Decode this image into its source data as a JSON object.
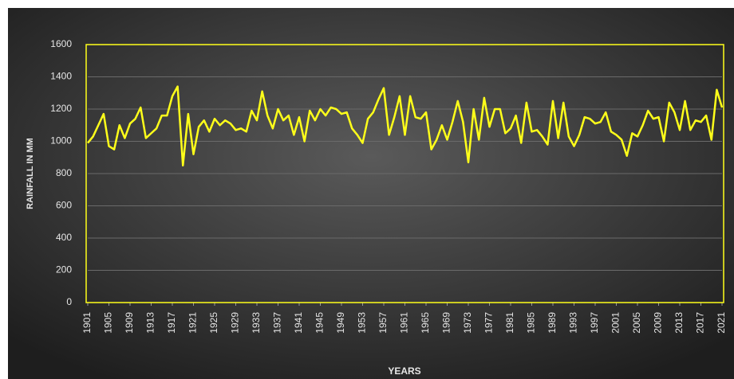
{
  "chart_data": {
    "type": "line",
    "x_label": "YEARS",
    "y_label": "RAINFALL IN MM",
    "x": [
      1901,
      1902,
      1903,
      1904,
      1905,
      1906,
      1907,
      1908,
      1909,
      1910,
      1911,
      1912,
      1913,
      1914,
      1915,
      1916,
      1917,
      1918,
      1919,
      1920,
      1921,
      1922,
      1923,
      1924,
      1925,
      1926,
      1927,
      1928,
      1929,
      1930,
      1931,
      1932,
      1933,
      1934,
      1935,
      1936,
      1937,
      1938,
      1939,
      1940,
      1941,
      1942,
      1943,
      1944,
      1945,
      1946,
      1947,
      1948,
      1949,
      1950,
      1951,
      1952,
      1953,
      1954,
      1955,
      1956,
      1957,
      1958,
      1959,
      1960,
      1961,
      1962,
      1963,
      1964,
      1965,
      1966,
      1967,
      1968,
      1969,
      1970,
      1971,
      1972,
      1973,
      1974,
      1975,
      1976,
      1977,
      1978,
      1979,
      1980,
      1981,
      1982,
      1983,
      1984,
      1985,
      1986,
      1987,
      1988,
      1989,
      1990,
      1991,
      1992,
      1993,
      1994,
      1995,
      1996,
      1997,
      1998,
      1999,
      2000,
      2001,
      2002,
      2003,
      2004,
      2005,
      2006,
      2007,
      2008,
      2009,
      2010,
      2011,
      2012,
      2013,
      2014,
      2015,
      2016,
      2017,
      2018,
      2019,
      2020,
      2021
    ],
    "series": [
      {
        "color": "#ffff1a",
        "values": [
          990,
          1030,
          1100,
          1170,
          970,
          950,
          1100,
          1020,
          1110,
          1140,
          1210,
          1020,
          1050,
          1080,
          1160,
          1160,
          1280,
          1340,
          850,
          1170,
          920,
          1090,
          1130,
          1060,
          1140,
          1100,
          1130,
          1110,
          1070,
          1080,
          1060,
          1190,
          1130,
          1310,
          1160,
          1080,
          1200,
          1130,
          1160,
          1040,
          1150,
          1000,
          1190,
          1130,
          1200,
          1160,
          1210,
          1200,
          1170,
          1180,
          1080,
          1040,
          990,
          1140,
          1180,
          1260,
          1330,
          1040,
          1150,
          1280,
          1040,
          1280,
          1150,
          1140,
          1180,
          950,
          1010,
          1100,
          1010,
          1120,
          1250,
          1120,
          870,
          1200,
          1010,
          1270,
          1090,
          1200,
          1200,
          1050,
          1080,
          1160,
          990,
          1240,
          1060,
          1070,
          1030,
          980,
          1250,
          1020,
          1240,
          1030,
          970,
          1040,
          1150,
          1140,
          1110,
          1120,
          1180,
          1060,
          1040,
          1010,
          910,
          1050,
          1030,
          1100,
          1190,
          1140,
          1150,
          1000,
          1240,
          1180,
          1070,
          1250,
          1070,
          1130,
          1120,
          1160,
          1010,
          1320,
          1210
        ]
      }
    ],
    "xlim": [
      1901,
      2021
    ],
    "xticks": [
      1901,
      1905,
      1909,
      1913,
      1917,
      1921,
      1925,
      1929,
      1933,
      1937,
      1941,
      1945,
      1949,
      1953,
      1957,
      1961,
      1965,
      1969,
      1973,
      1977,
      1981,
      1985,
      1989,
      1993,
      1997,
      2001,
      2005,
      2009,
      2013,
      2017,
      2021
    ],
    "ylim": [
      0,
      1600
    ],
    "yticks": [
      0,
      200,
      400,
      600,
      800,
      1000,
      1200,
      1400,
      1600
    ],
    "grid": true,
    "frame_color": "#ffff1a"
  }
}
